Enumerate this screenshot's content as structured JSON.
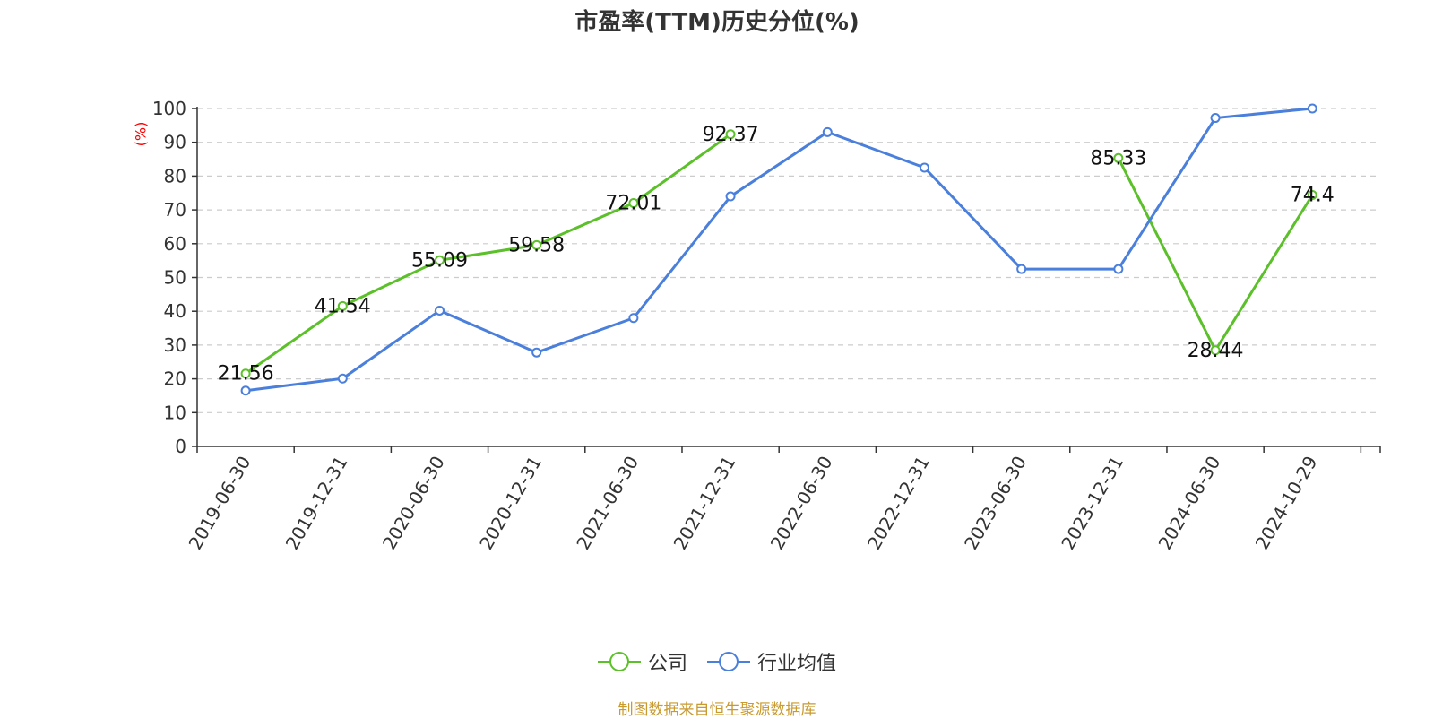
{
  "chart_data": {
    "type": "line",
    "title": "市盈率(TTM)历史分位(%)",
    "ylabel": "(%)",
    "ylim": [
      0,
      100
    ],
    "yticks": [
      0,
      10,
      20,
      30,
      40,
      50,
      60,
      70,
      80,
      90,
      100
    ],
    "grid": true,
    "legend_position": "bottom-center",
    "categories": [
      "2019-06-30",
      "2019-12-31",
      "2020-06-30",
      "2020-12-31",
      "2021-06-30",
      "2021-12-31",
      "2022-06-30",
      "2022-12-31",
      "2023-06-30",
      "2023-12-31",
      "2024-06-30",
      "2024-10-29"
    ],
    "series": [
      {
        "name": "公司",
        "color": "#5cc02a",
        "values": [
          21.56,
          41.54,
          55.09,
          59.58,
          72.01,
          92.37,
          null,
          null,
          null,
          85.33,
          28.44,
          74.4
        ],
        "labels": [
          "21.56",
          "41.54",
          "55.09",
          "59.58",
          "72.01",
          "92.37",
          "",
          "",
          "",
          "85.33",
          "28.44",
          "74.4"
        ]
      },
      {
        "name": "行业均值",
        "color": "#4a7fdc",
        "values": [
          16.5,
          20.1,
          40.2,
          27.8,
          38.0,
          74.0,
          93.0,
          82.5,
          52.5,
          52.5,
          97.2,
          100.0
        ]
      }
    ]
  },
  "source": "制图数据来自恒生聚源数据库"
}
